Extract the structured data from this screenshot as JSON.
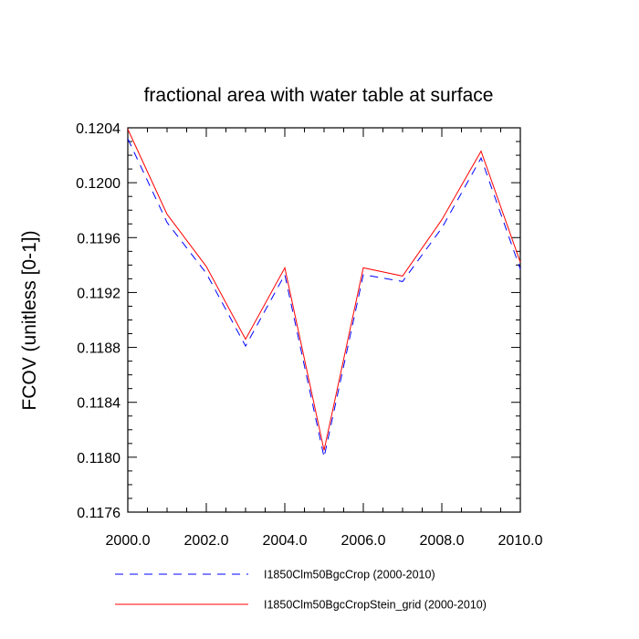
{
  "chart_data": {
    "type": "line",
    "title": "fractional area with water table at surface",
    "xlabel": "",
    "ylabel": "FCOV  (unitless [0-1])",
    "xlim": [
      2000,
      2010
    ],
    "ylim": [
      0.1176,
      0.1204
    ],
    "x_ticks": [
      "2000.0",
      "2002.0",
      "2004.0",
      "2006.0",
      "2008.0",
      "2010.0"
    ],
    "x_tick_values": [
      2000,
      2002,
      2004,
      2006,
      2008,
      2010
    ],
    "y_ticks": [
      "0.1176",
      "0.1180",
      "0.1184",
      "0.1188",
      "0.1192",
      "0.1196",
      "0.1200",
      "0.1204"
    ],
    "y_tick_values": [
      0.1176,
      0.118,
      0.1184,
      0.1188,
      0.1192,
      0.1196,
      0.12,
      0.1204
    ],
    "grid": false,
    "legend_position": "bottom",
    "x": [
      2000,
      2001,
      2002,
      2003,
      2004,
      2005,
      2006,
      2007,
      2008,
      2009,
      2010
    ],
    "series": [
      {
        "name": "I1850Clm50BgcCrop (2000-2010)",
        "color": "#0000ff",
        "style": "dashed",
        "values": [
          0.12032,
          0.11971,
          0.11934,
          0.11881,
          0.11933,
          0.118,
          0.11933,
          0.11928,
          0.11967,
          0.12018,
          0.11937
        ]
      },
      {
        "name": "I1850Clm50BgcCropStein_grid (2000-2010)",
        "color": "#ff0000",
        "style": "solid",
        "values": [
          0.12039,
          0.11977,
          0.11939,
          0.11886,
          0.11938,
          0.11805,
          0.11938,
          0.11932,
          0.11973,
          0.12023,
          0.11942
        ]
      }
    ]
  }
}
